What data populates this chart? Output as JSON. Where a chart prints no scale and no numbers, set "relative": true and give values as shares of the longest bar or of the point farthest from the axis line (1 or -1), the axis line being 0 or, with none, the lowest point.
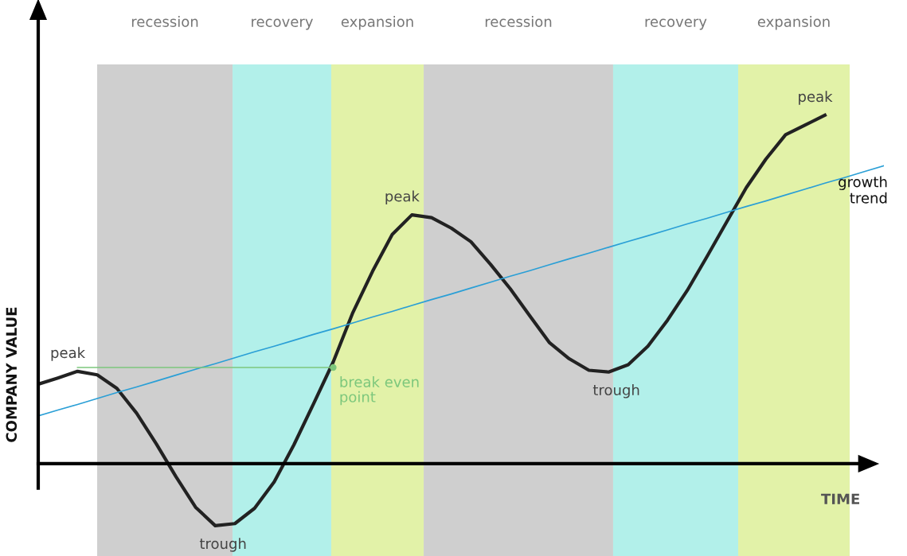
{
  "chart_data": {
    "type": "line",
    "relative": true,
    "ylabel": "COMPANY VALUE",
    "xlabel": "TIME",
    "categories": [
      null,
      null,
      null,
      null,
      null,
      null,
      null,
      null,
      null,
      null,
      null,
      null,
      null,
      null,
      null,
      null,
      null,
      null,
      null,
      null,
      null,
      null,
      null,
      null,
      null,
      null,
      null,
      null,
      null,
      null,
      null,
      null,
      null,
      null,
      null,
      null,
      null,
      null,
      null,
      null,
      null,
      null,
      null,
      null
    ],
    "legend": false,
    "marker": "none",
    "line_style": "solid",
    "series": [
      {
        "color": "#222222",
        "values": [
          0.228,
          0.246,
          0.265,
          0.255,
          0.216,
          0.145,
          0.057,
          -0.037,
          -0.125,
          -0.178,
          -0.172,
          -0.128,
          -0.052,
          0.054,
          0.172,
          0.292,
          0.434,
          0.552,
          0.658,
          0.714,
          0.706,
          0.676,
          0.637,
          0.572,
          0.502,
          0.424,
          0.347,
          0.301,
          0.268,
          0.263,
          0.284,
          0.337,
          0.412,
          0.497,
          0.594,
          0.693,
          0.792,
          0.874,
          0.944,
          0.972,
          1.0,
          null,
          null,
          null
        ]
      },
      {
        "name": "growth trend",
        "color": "#2a9fd6",
        "values": [
          0.137,
          0.154,
          0.17,
          0.187,
          0.204,
          0.22,
          0.237,
          0.254,
          0.271,
          0.287,
          0.304,
          0.321,
          0.337,
          0.354,
          0.371,
          0.387,
          0.404,
          0.421,
          0.437,
          0.454,
          0.471,
          0.487,
          0.504,
          0.521,
          0.538,
          0.554,
          0.571,
          0.588,
          0.604,
          0.621,
          0.638,
          0.654,
          0.671,
          0.688,
          0.704,
          0.721,
          0.738,
          0.754,
          0.771,
          0.788,
          0.805,
          0.821,
          0.838,
          0.855
        ]
      },
      {
        "color": "#7cc77c",
        "values": [
          null,
          null,
          0.276,
          0.276,
          0.276,
          0.276,
          0.276,
          0.276,
          0.276,
          0.276,
          0.276,
          0.276,
          0.276,
          0.276,
          0.276,
          0.276,
          null,
          null,
          null,
          null,
          null,
          null,
          null,
          null,
          null,
          null,
          null,
          null,
          null,
          null,
          null,
          null,
          null,
          null,
          null,
          null,
          null,
          null,
          null,
          null,
          null,
          null,
          null,
          null
        ]
      }
    ],
    "annotations": [
      "recession",
      "recovery",
      "expansion",
      "recession",
      "recovery",
      "expansion",
      "peak",
      "trough",
      "peak",
      "trough",
      "peak",
      "break even point"
    ]
  }
}
